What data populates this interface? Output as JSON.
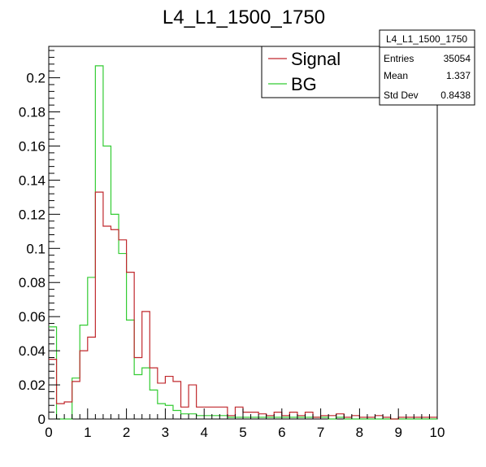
{
  "chart_data": {
    "type": "histogram",
    "title": "L4_L1_1500_1750",
    "xlabel": "",
    "ylabel": "",
    "xlim": [
      0,
      10
    ],
    "ylim": [
      0,
      0.2184
    ],
    "grid": false,
    "legend_position": "top-right",
    "x_ticks": [
      0,
      1,
      2,
      3,
      4,
      5,
      6,
      7,
      8,
      9,
      10
    ],
    "y_ticks": [
      0,
      0.02,
      0.04,
      0.06,
      0.08,
      0.1,
      0.12,
      0.14,
      0.16,
      0.18,
      0.2
    ],
    "y_tick_labels": [
      "0",
      "0.02",
      "0.04",
      "0.06",
      "0.08",
      "0.1",
      "0.12",
      "0.14",
      "0.16",
      "0.18",
      "0.2"
    ],
    "bin_edges": [
      0,
      0.2,
      0.4,
      0.6,
      0.8,
      1.0,
      1.2,
      1.4,
      1.6,
      1.8,
      2.0,
      2.2,
      2.4,
      2.6,
      2.8,
      3.0,
      3.2,
      3.4,
      3.6,
      3.8,
      4.0,
      4.2,
      4.4,
      4.6,
      4.8,
      5.0,
      5.2,
      5.4,
      5.6,
      5.8,
      6.0,
      6.2,
      6.4,
      6.6,
      6.8,
      7.0,
      7.2,
      7.4,
      7.6,
      7.8,
      8.0,
      8.2,
      8.4,
      8.6,
      8.8,
      9.0,
      9.2,
      9.4,
      9.6,
      9.8,
      10.0
    ],
    "series": [
      {
        "name": "Signal",
        "color": "#c0282d",
        "values": [
          0.035,
          0.009,
          0.01,
          0.022,
          0.04,
          0.048,
          0.133,
          0.113,
          0.111,
          0.105,
          0.086,
          0.036,
          0.063,
          0.03,
          0.021,
          0.025,
          0.022,
          0.007,
          0.02,
          0.007,
          0.007,
          0.007,
          0.007,
          0.002,
          0.007,
          0.004,
          0.004,
          0.003,
          0.002,
          0.004,
          0.002,
          0.004,
          0.002,
          0.004,
          0.001,
          0.002,
          0.002,
          0.003,
          0.001,
          0.002,
          0.001,
          0.001,
          0.002,
          0.001,
          0.0,
          0.001,
          0.001,
          0.001,
          0.001,
          0.001
        ]
      },
      {
        "name": "BG",
        "color": "#33cc33",
        "values": [
          0.054,
          0.0,
          0.0,
          0.024,
          0.055,
          0.083,
          0.207,
          0.16,
          0.12,
          0.097,
          0.058,
          0.026,
          0.03,
          0.017,
          0.009,
          0.008,
          0.005,
          0.003,
          0.003,
          0.002,
          0.002,
          0.002,
          0.002,
          0.001,
          0.001,
          0.001,
          0.001,
          0.001,
          0.001,
          0.001,
          0.001,
          0.001,
          0.001,
          0.001,
          0.001,
          0.001,
          0.0,
          0.001,
          0.0,
          0.0,
          0.0,
          0.0,
          0.0,
          0.0,
          0.0,
          0.0,
          0.0,
          0.0,
          0.0,
          0.0
        ]
      }
    ]
  },
  "stats_box": {
    "title": "L4_L1_1500_1750",
    "rows": [
      {
        "label": "Entries",
        "value": "35054"
      },
      {
        "label": "Mean",
        "value": "1.337"
      },
      {
        "label": "Std Dev",
        "value": "0.8438"
      }
    ]
  },
  "legend": {
    "entries": [
      {
        "label": "Signal",
        "color": "#c0282d"
      },
      {
        "label": "BG",
        "color": "#33cc33"
      }
    ]
  }
}
